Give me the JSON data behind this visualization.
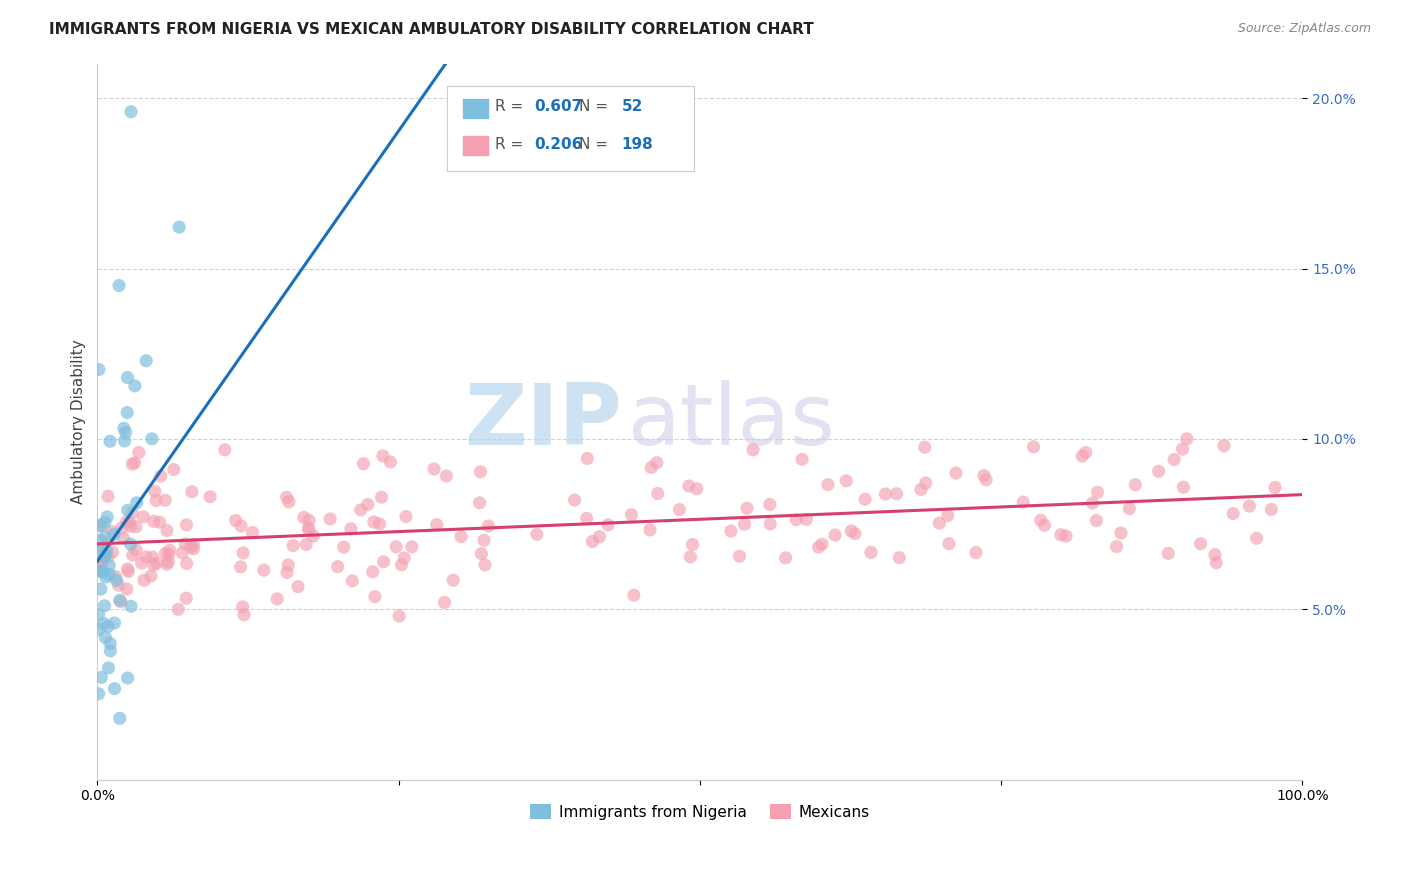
{
  "title": "IMMIGRANTS FROM NIGERIA VS MEXICAN AMBULATORY DISABILITY CORRELATION CHART",
  "source": "Source: ZipAtlas.com",
  "ylabel": "Ambulatory Disability",
  "xmin": 0.0,
  "xmax": 1.0,
  "ymin": 0.0,
  "ymax": 0.21,
  "ytick_vals": [
    0.05,
    0.1,
    0.15,
    0.2
  ],
  "ytick_labels": [
    "5.0%",
    "10.0%",
    "15.0%",
    "20.0%"
  ],
  "xtick_vals": [
    0.0,
    0.25,
    0.5,
    0.75,
    1.0
  ],
  "xtick_labels": [
    "0.0%",
    "",
    "",
    "",
    "100.0%"
  ],
  "nigeria_R": 0.607,
  "nigeria_N": 52,
  "mexican_R": 0.206,
  "mexican_N": 198,
  "nigeria_color": "#7fbfdd",
  "mexican_color": "#f4a0b0",
  "nigeria_line_color": "#1a6fbb",
  "mexican_line_color": "#d64070",
  "legend_nigeria_label": "Immigrants from Nigeria",
  "legend_mexican_label": "Mexicans",
  "watermark_zip": "ZIP",
  "watermark_atlas": "atlas",
  "title_fontsize": 11,
  "axis_tick_fontsize": 10,
  "ylabel_fontsize": 11
}
